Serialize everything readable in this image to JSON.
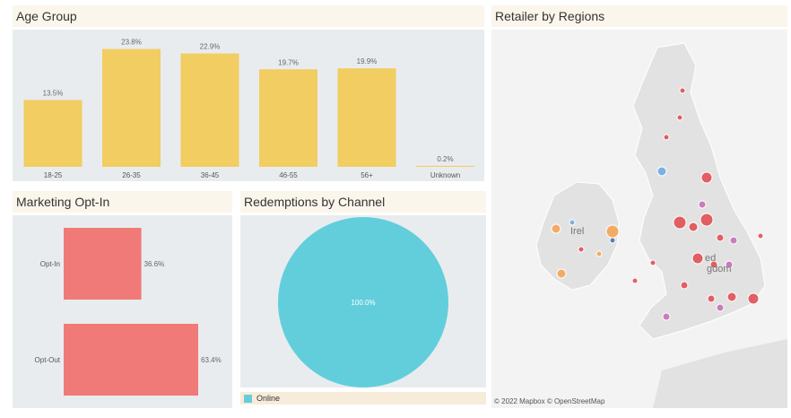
{
  "panels": {
    "age_group": {
      "title": "Age Group"
    },
    "retailer_regions": {
      "title": "Retailer by Regions",
      "map_labels": [
        "Irel",
        "ed",
        "gdom"
      ],
      "attribution": "© 2022 Mapbox  © OpenStreetMap"
    },
    "marketing_opt_in": {
      "title": "Marketing Opt-In"
    },
    "redemptions_channel": {
      "title": "Redemptions by Channel",
      "legend": [
        {
          "label": "Online",
          "color": "#62cedb"
        }
      ]
    }
  },
  "colors": {
    "age_bar": "#f1cd62",
    "optin_bar": "#f07a78",
    "pie": "#62cedb",
    "plot_bg": "#e9ecef",
    "title_bg": "#fbf6ec"
  },
  "chart_data": [
    {
      "type": "bar",
      "orientation": "vertical",
      "categories": [
        "18-25",
        "26-35",
        "36-45",
        "46-55",
        "56+",
        "Unknown"
      ],
      "values": [
        13.5,
        23.8,
        22.9,
        19.7,
        19.9,
        0.2
      ],
      "value_labels": [
        "13.5%",
        "23.8%",
        "22.9%",
        "19.7%",
        "19.9%",
        "0.2%"
      ],
      "ylim": [
        0,
        25
      ]
    },
    {
      "type": "bar",
      "orientation": "horizontal",
      "categories": [
        "Opt-In",
        "Opt-Out"
      ],
      "values": [
        36.6,
        63.4
      ],
      "value_labels": [
        "36.6%",
        "63.4%"
      ],
      "xlim": [
        0,
        70
      ]
    },
    {
      "type": "pie",
      "categories": [
        "Online"
      ],
      "values": [
        100.0
      ],
      "value_labels": [
        "100.0%"
      ]
    }
  ]
}
